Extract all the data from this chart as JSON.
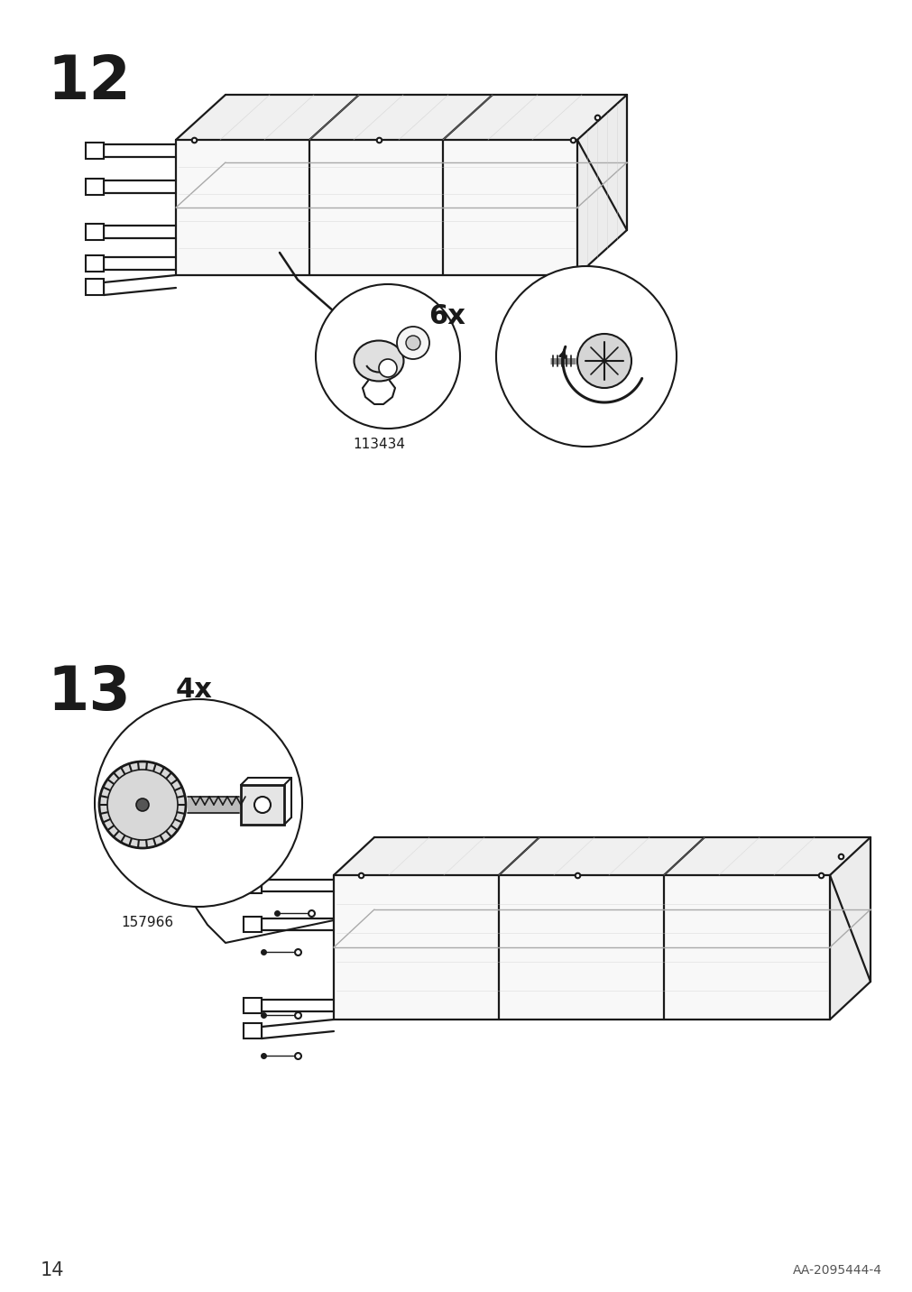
{
  "background_color": "#ffffff",
  "line_color": "#1a1a1a",
  "light_line_color": "#888888",
  "step12_number": "12",
  "step13_number": "13",
  "page_number": "14",
  "doc_number": "AA-2095444-4",
  "part1_label": "113434",
  "part2_label": "157966",
  "count1": "6x",
  "count2": "4x"
}
